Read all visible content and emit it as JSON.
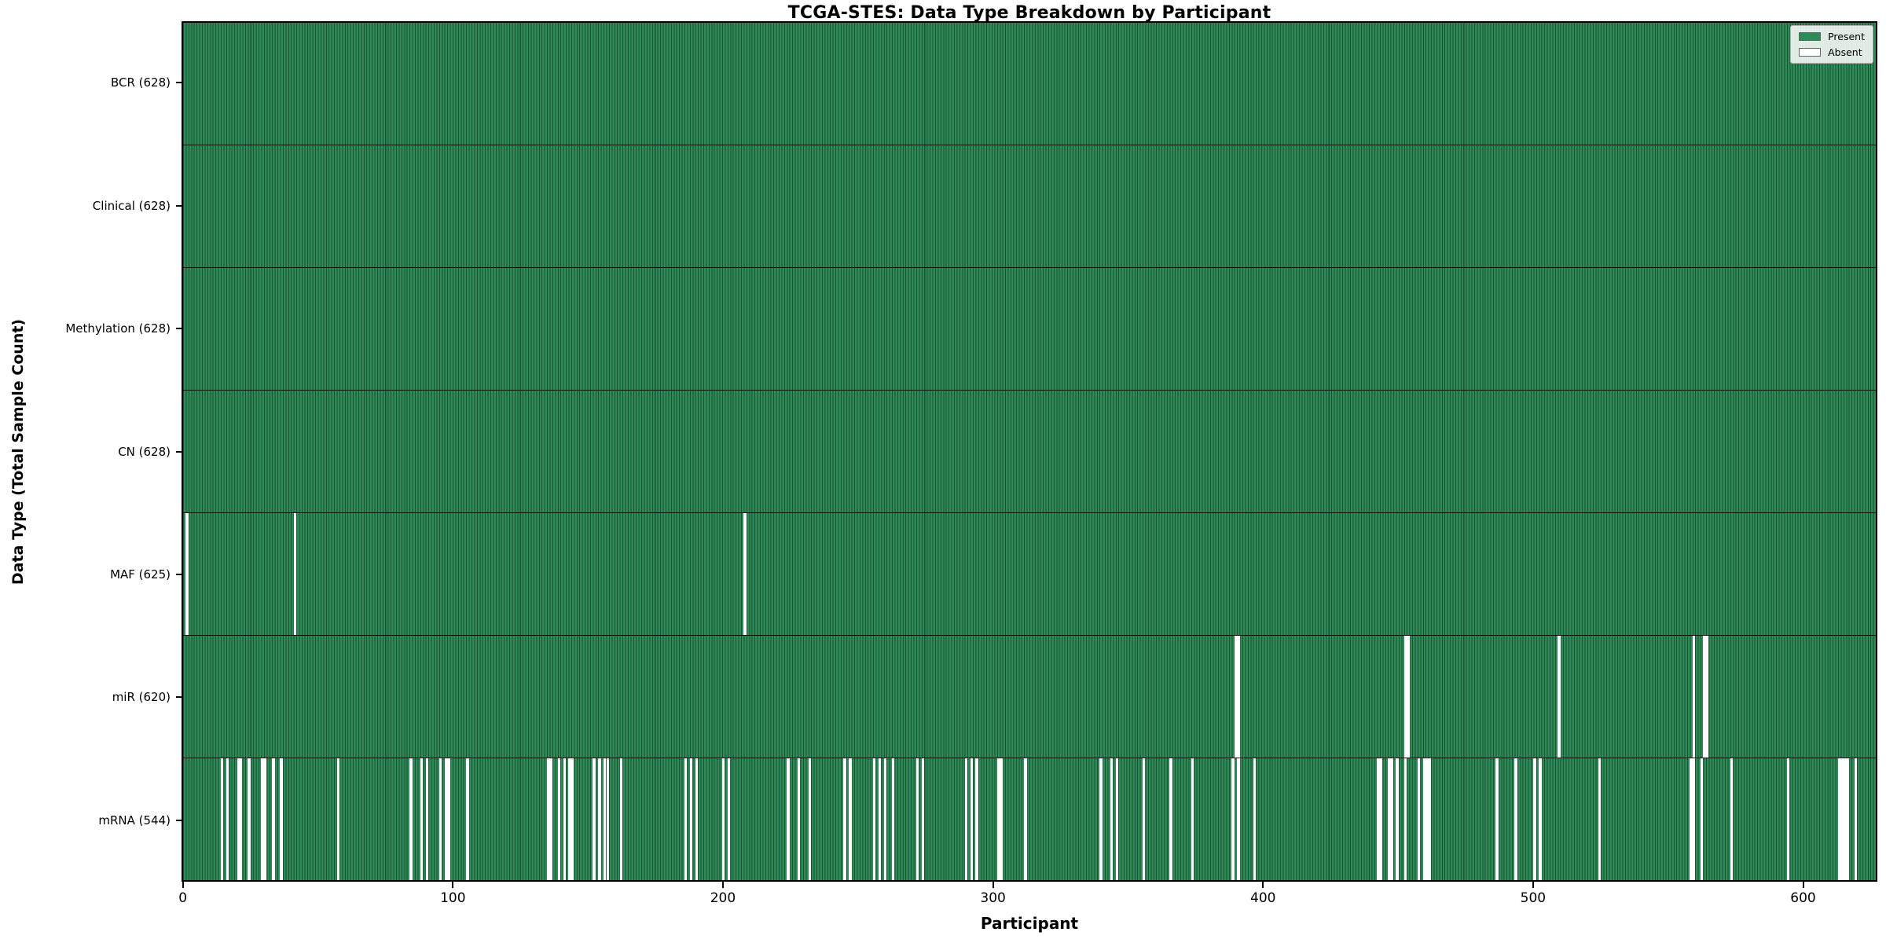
{
  "title": "TCGA-STES: Data Type Breakdown by Participant",
  "xlabel": "Participant",
  "ylabel": "Data Type (Total Sample Count)",
  "legend": {
    "present_label": "Present",
    "absent_label": "Absent"
  },
  "colors": {
    "present": "#2e8b57",
    "absent": "#ffffff",
    "axis": "#000000"
  },
  "chart_data": {
    "type": "heatmap",
    "title": "TCGA-STES: Data Type Breakdown by Participant",
    "xlabel": "Participant",
    "ylabel": "Data Type (Total Sample Count)",
    "legend_entries": [
      "Present",
      "Absent"
    ],
    "legend_position": "upper right",
    "grid": false,
    "n_participants": 628,
    "x_tick_values": [
      0,
      100,
      200,
      300,
      400,
      500,
      600
    ],
    "xlim": [
      -0.5,
      627.5
    ],
    "rows": [
      {
        "name": "bcr",
        "label": "BCR (628)",
        "data_type": "BCR",
        "present_count": 628,
        "absent_participants": []
      },
      {
        "name": "clinical",
        "label": "Clinical (628)",
        "data_type": "Clinical",
        "present_count": 628,
        "absent_participants": []
      },
      {
        "name": "methylation",
        "label": "Methylation (628)",
        "data_type": "Methylation",
        "present_count": 628,
        "absent_participants": []
      },
      {
        "name": "cn",
        "label": "CN (628)",
        "data_type": "CN",
        "present_count": 628,
        "absent_participants": []
      },
      {
        "name": "maf",
        "label": "MAF (625)",
        "data_type": "MAF",
        "present_count": 625,
        "absent_participants": [
          1,
          41,
          208
        ]
      },
      {
        "name": "mir",
        "label": "miR (620)",
        "data_type": "miR",
        "present_count": 620,
        "absent_participants": [
          390,
          391,
          453,
          454,
          510,
          560,
          564,
          565
        ]
      },
      {
        "name": "mrna",
        "label": "mRNA (544)",
        "data_type": "mRNA",
        "present_count": 544,
        "absent_participants": [
          14,
          16,
          20,
          21,
          24,
          29,
          30,
          33,
          36,
          57,
          84,
          88,
          90,
          95,
          97,
          98,
          105,
          135,
          136,
          139,
          141,
          143,
          144,
          152,
          154,
          156,
          157,
          162,
          186,
          188,
          190,
          200,
          202,
          224,
          228,
          232,
          245,
          247,
          256,
          258,
          260,
          263,
          272,
          274,
          290,
          292,
          294,
          302,
          303,
          312,
          340,
          344,
          346,
          356,
          366,
          374,
          389,
          391,
          397,
          443,
          444,
          447,
          448,
          450,
          453,
          458,
          460,
          461,
          462,
          487,
          494,
          501,
          503,
          525,
          559,
          560,
          563,
          574,
          595,
          614,
          615,
          616,
          617,
          620
        ]
      }
    ]
  }
}
